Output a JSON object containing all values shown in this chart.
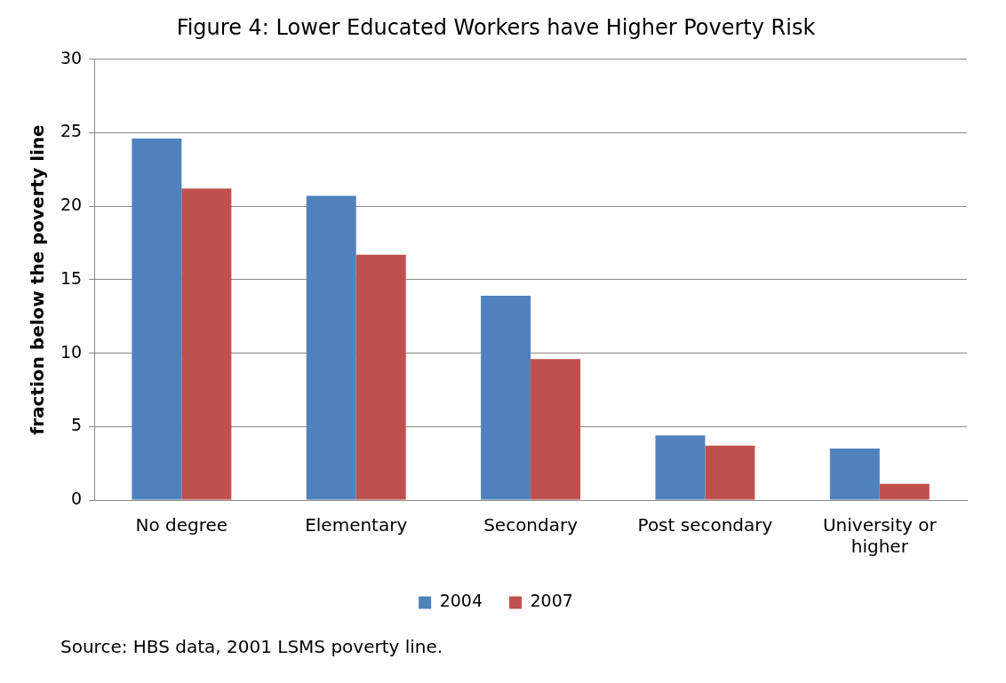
{
  "chart_data": {
    "type": "bar",
    "title": "Figure 4: Lower Educated Workers have Higher Poverty Risk",
    "ylabel": "fraction below the poverty line",
    "categories": [
      "No degree",
      "Elementary",
      "Secondary",
      "Post secondary",
      "University or higher"
    ],
    "series": [
      {
        "name": "2004",
        "color": "#4f81bd",
        "values": [
          24.6,
          20.7,
          13.9,
          4.4,
          3.5
        ]
      },
      {
        "name": "2007",
        "color": "#c0504d",
        "values": [
          21.2,
          16.7,
          9.6,
          3.7,
          1.1
        ]
      }
    ],
    "ylim": [
      0,
      30
    ],
    "yticks": [
      0,
      5,
      10,
      15,
      20,
      25,
      30
    ],
    "grid": "y",
    "legend": "bottom",
    "annotations": [
      "Source: HBS data, 2001 LSMS poverty line."
    ]
  }
}
